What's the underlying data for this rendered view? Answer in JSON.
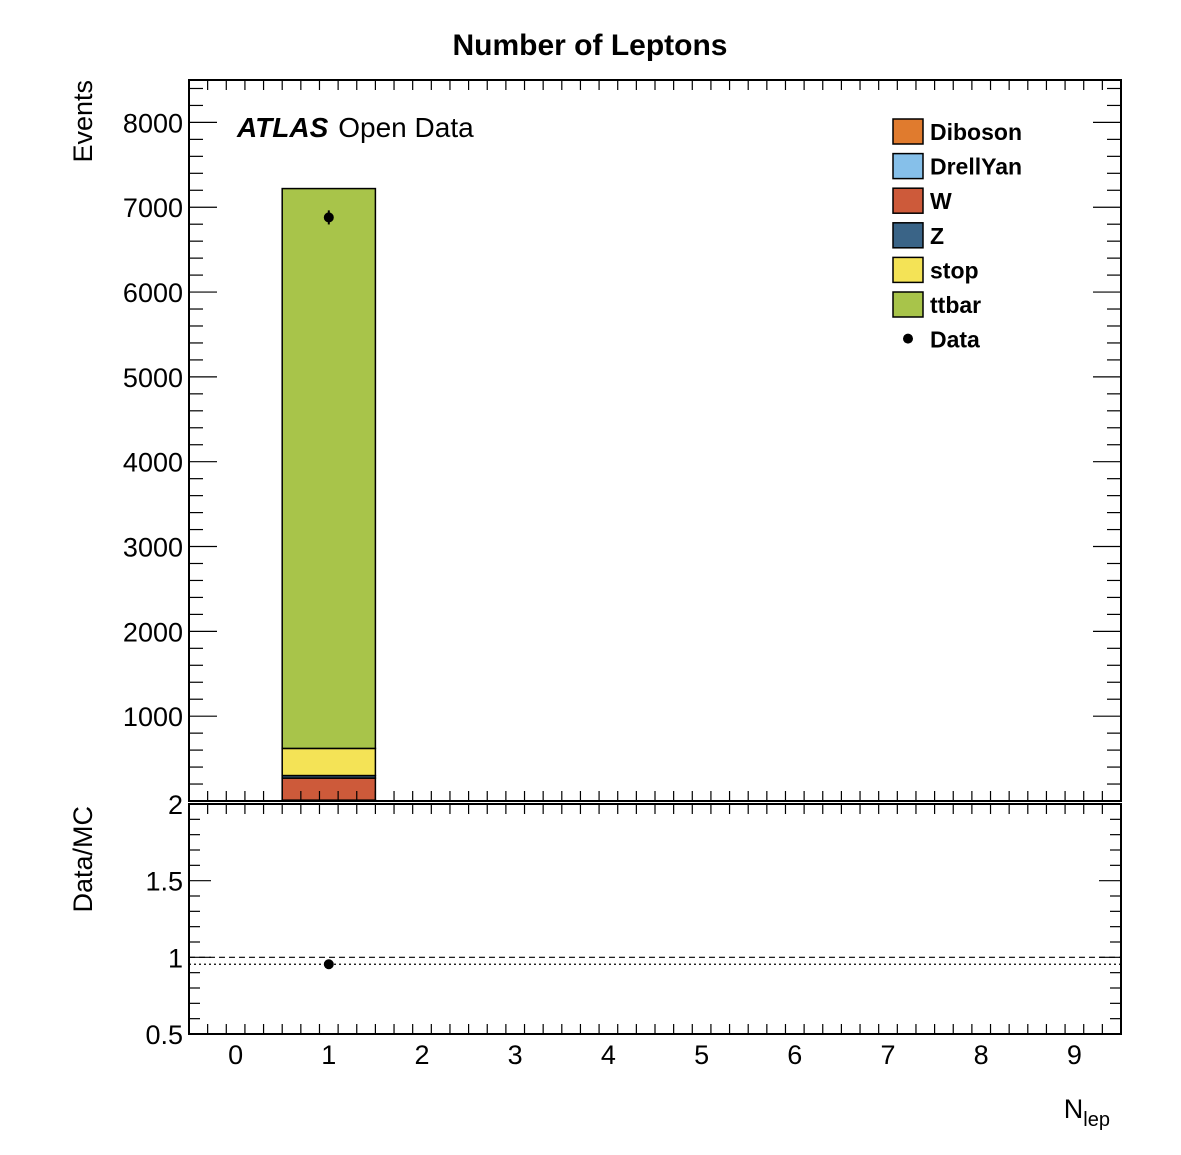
{
  "chart_data": {
    "type": "bar",
    "title": "Number of Leptons",
    "xlabel": {
      "main": "N",
      "sub": "lep"
    },
    "ylabel": "Events",
    "ratio_ylabel": "Data/MC",
    "annotation": {
      "bold": "ATLAS",
      "regular": "Open Data"
    },
    "xlim": [
      -0.5,
      9.5
    ],
    "ylim": [
      0,
      8500
    ],
    "ratio_ylim": [
      0.5,
      2
    ],
    "x_ticks": [
      "0",
      "1",
      "2",
      "3",
      "4",
      "5",
      "6",
      "7",
      "8",
      "9"
    ],
    "y_ticks": [
      "1000",
      "2000",
      "3000",
      "4000",
      "5000",
      "6000",
      "7000",
      "8000"
    ],
    "ratio_y_ticks": [
      "0.5",
      "1",
      "1.5",
      "2"
    ],
    "bin_center": 1,
    "bin_width": 1,
    "stack": [
      {
        "name": "Diboson",
        "color": "#e07b2e",
        "value": 5
      },
      {
        "name": "DrellYan",
        "color": "#86c0ea",
        "value": 5
      },
      {
        "name": "W",
        "color": "#cd5a3a",
        "value": 260
      },
      {
        "name": "Z",
        "color": "#3a6487",
        "value": 30
      },
      {
        "name": "stop",
        "color": "#f4e356",
        "value": 320
      },
      {
        "name": "ttbar",
        "color": "#a8c44a",
        "value": 6600
      }
    ],
    "data": {
      "name": "Data",
      "x": 1,
      "y": 6880,
      "err": 83,
      "color": "#000000"
    },
    "ratio": {
      "x": 1,
      "y": 0.955,
      "reference": 1
    },
    "legend_position": "top-right"
  }
}
